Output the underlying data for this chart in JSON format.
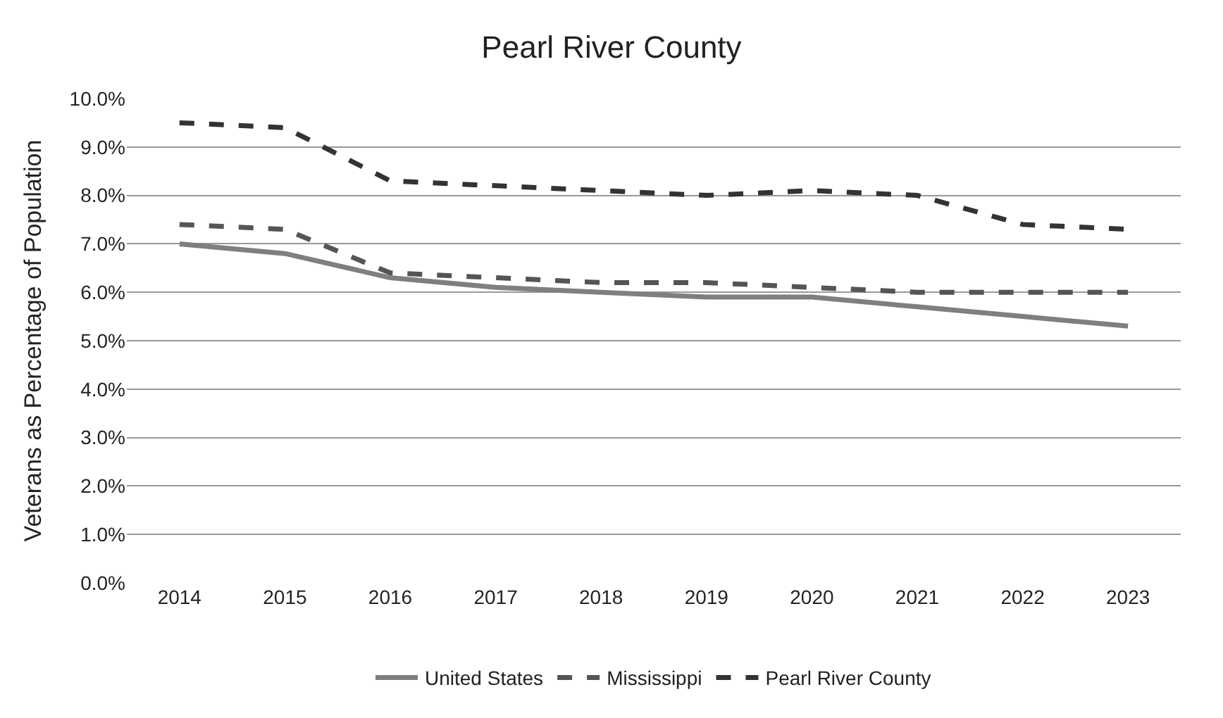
{
  "chart_data": {
    "type": "line",
    "title": "Pearl River County",
    "ylabel": "Veterans as Percentage of Population",
    "categories": [
      "2014",
      "2015",
      "2016",
      "2017",
      "2018",
      "2019",
      "2020",
      "2021",
      "2022",
      "2023"
    ],
    "series": [
      {
        "name": "United States",
        "color": "#7f7f7f",
        "line_style": "solid",
        "values": [
          7.0,
          6.8,
          6.3,
          6.1,
          6.0,
          5.9,
          5.9,
          5.7,
          5.5,
          5.3
        ]
      },
      {
        "name": "Mississippi",
        "color": "#555555",
        "line_style": "dashed",
        "values": [
          7.4,
          7.3,
          6.4,
          6.3,
          6.2,
          6.2,
          6.1,
          6.0,
          6.0,
          6.0
        ]
      },
      {
        "name": "Pearl River County",
        "color": "#333333",
        "line_style": "dashed",
        "values": [
          9.5,
          9.4,
          8.3,
          8.2,
          8.1,
          8.0,
          8.1,
          8.0,
          7.4,
          7.3
        ]
      }
    ],
    "ylim": [
      0,
      10
    ],
    "yticks": [
      {
        "value": 0,
        "label": "0.0%"
      },
      {
        "value": 1,
        "label": "1.0%"
      },
      {
        "value": 2,
        "label": "2.0%"
      },
      {
        "value": 3,
        "label": "3.0%"
      },
      {
        "value": 4,
        "label": "4.0%"
      },
      {
        "value": 5,
        "label": "5.0%"
      },
      {
        "value": 6,
        "label": "6.0%"
      },
      {
        "value": 7,
        "label": "7.0%"
      },
      {
        "value": 8,
        "label": "8.0%"
      },
      {
        "value": 9,
        "label": "9.0%"
      },
      {
        "value": 10,
        "label": "10.0%"
      }
    ],
    "grid": "y",
    "legend": "bottom",
    "marker": "none"
  }
}
